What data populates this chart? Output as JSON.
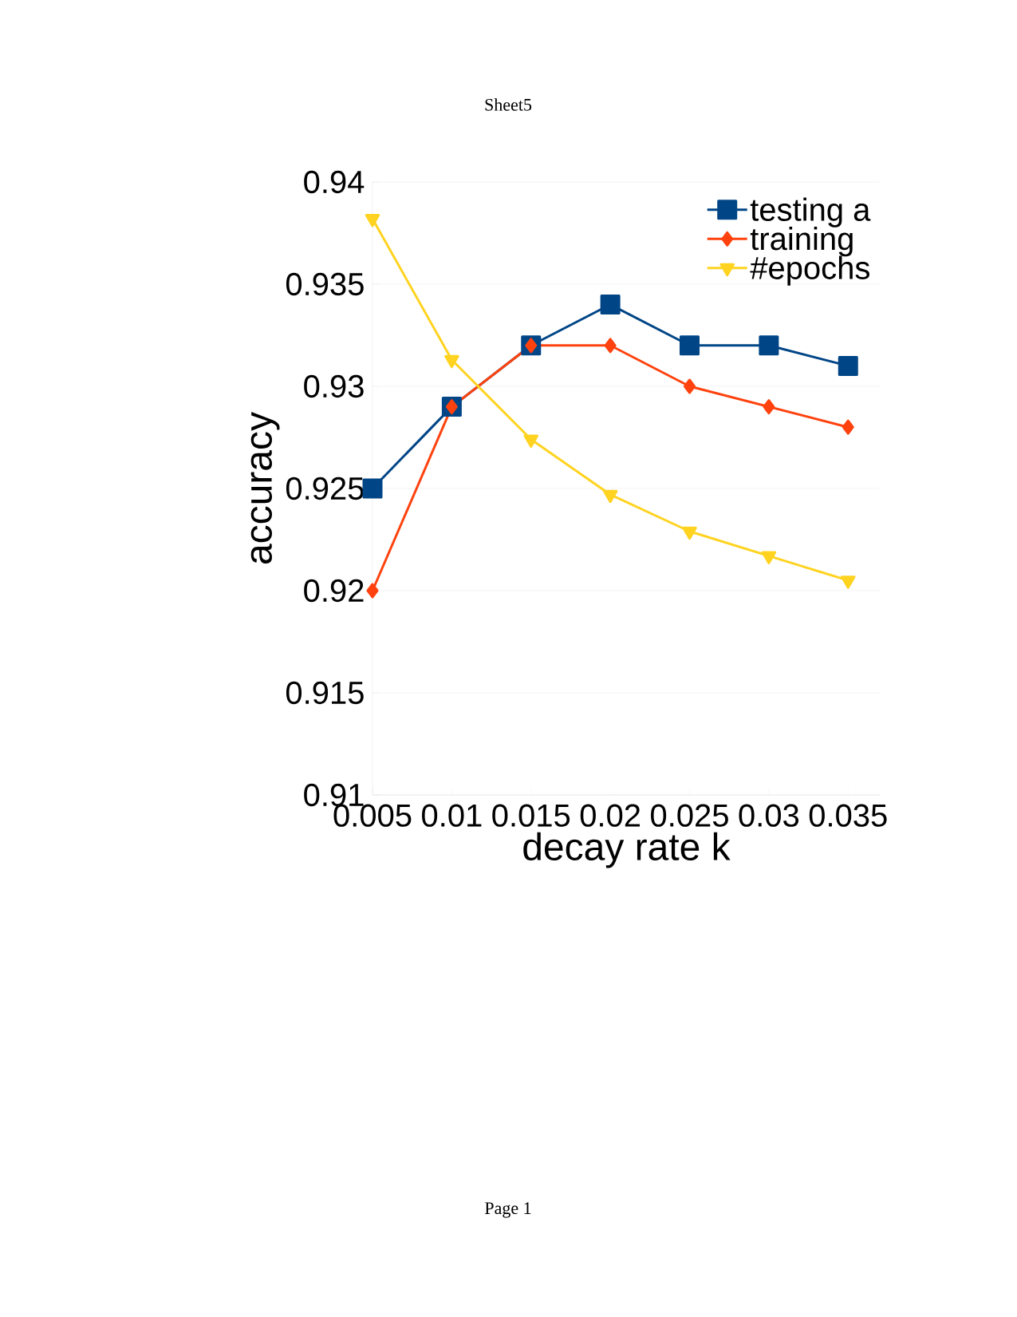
{
  "chart_data": {
    "type": "line",
    "title": "Sheet5",
    "xlabel": "decay rate k",
    "ylabel": "accuracy",
    "annotations": [
      "Page 1"
    ],
    "x": [
      0.005,
      0.01,
      0.015,
      0.02,
      0.025,
      0.03,
      0.035
    ],
    "series": [
      {
        "name": "testing a",
        "color": "#004586",
        "marker": "square",
        "values": [
          0.925,
          0.929,
          0.932,
          0.934,
          0.932,
          0.932,
          0.931
        ]
      },
      {
        "name": "training",
        "color": "#ff420e",
        "marker": "diamond",
        "values": [
          0.92,
          0.929,
          0.932,
          0.932,
          0.93,
          0.929,
          0.928
        ]
      },
      {
        "name": "#epochs",
        "color": "#ffd320",
        "marker": "triangle",
        "values": [
          0.9382,
          0.9313,
          0.9274,
          0.9247,
          0.9229,
          0.9217,
          0.9205
        ]
      }
    ],
    "xlim": [
      0.005,
      0.037
    ],
    "xticks": [
      0.005,
      0.01,
      0.015,
      0.02,
      0.025,
      0.03,
      0.035
    ],
    "ylim": [
      0.91,
      0.94
    ],
    "yticks": [
      0.91,
      0.915,
      0.92,
      0.925,
      0.93,
      0.935,
      0.94
    ],
    "grid": "y",
    "legend": "top right",
    "line_style": "solid"
  }
}
